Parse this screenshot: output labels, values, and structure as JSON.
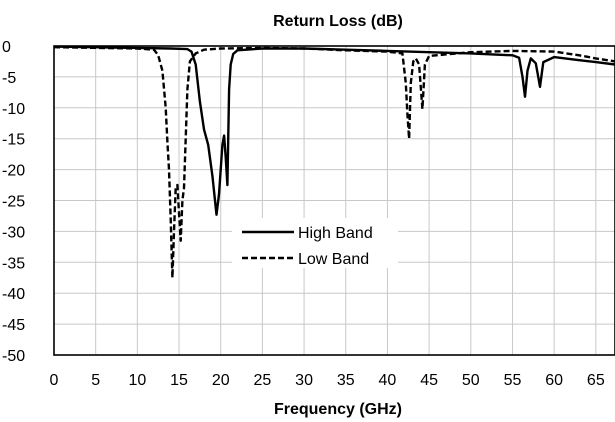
{
  "chart_data": {
    "type": "line",
    "title": "Return Loss (dB)",
    "xlabel": "Frequency (GHz)",
    "ylabel": "",
    "xlim": [
      0,
      67.3
    ],
    "ylim": [
      -50,
      0
    ],
    "xticks": [
      0,
      5,
      10,
      15,
      20,
      25,
      30,
      35,
      40,
      45,
      50,
      55,
      60,
      65
    ],
    "yticks": [
      0,
      -5,
      -10,
      -15,
      -20,
      -25,
      -30,
      -35,
      -40,
      -45,
      -50
    ],
    "grid": true,
    "legend_position": "center",
    "series": [
      {
        "name": "High Band",
        "line_style": "solid",
        "color": "#000000",
        "points": [
          [
            0,
            -0.1
          ],
          [
            10,
            -0.3
          ],
          [
            14,
            -0.4
          ],
          [
            16,
            -0.5
          ],
          [
            16.5,
            -0.9
          ],
          [
            17,
            -3
          ],
          [
            17.5,
            -9
          ],
          [
            18,
            -13.5
          ],
          [
            18.5,
            -16
          ],
          [
            19,
            -21
          ],
          [
            19.5,
            -27.3
          ],
          [
            19.8,
            -24
          ],
          [
            20.2,
            -16
          ],
          [
            20.4,
            -14.5
          ],
          [
            20.6,
            -18
          ],
          [
            20.8,
            -22.5
          ],
          [
            21,
            -7
          ],
          [
            21.2,
            -3
          ],
          [
            21.5,
            -1.3
          ],
          [
            22,
            -0.7
          ],
          [
            25,
            -0.4
          ],
          [
            30,
            -0.4
          ],
          [
            35,
            -0.6
          ],
          [
            40,
            -0.8
          ],
          [
            45,
            -1.0
          ],
          [
            50,
            -1.2
          ],
          [
            55,
            -1.5
          ],
          [
            55.8,
            -1.9
          ],
          [
            56.2,
            -5
          ],
          [
            56.5,
            -8.2
          ],
          [
            56.8,
            -4
          ],
          [
            57.2,
            -2
          ],
          [
            57.8,
            -2.8
          ],
          [
            58.3,
            -6.6
          ],
          [
            58.7,
            -2.6
          ],
          [
            60,
            -1.8
          ],
          [
            63,
            -2.3
          ],
          [
            65,
            -2.6
          ],
          [
            67.3,
            -3.0
          ]
        ]
      },
      {
        "name": "Low Band",
        "line_style": "dashed",
        "color": "#000000",
        "points": [
          [
            0,
            -0.2
          ],
          [
            10,
            -0.4
          ],
          [
            12,
            -0.6
          ],
          [
            12.5,
            -1.5
          ],
          [
            13,
            -4
          ],
          [
            13.4,
            -10
          ],
          [
            13.6,
            -15.5
          ],
          [
            13.8,
            -20
          ],
          [
            14,
            -28
          ],
          [
            14.2,
            -37.5
          ],
          [
            14.4,
            -30
          ],
          [
            14.6,
            -23
          ],
          [
            14.8,
            -22.5
          ],
          [
            15,
            -27
          ],
          [
            15.2,
            -31.5
          ],
          [
            15.4,
            -25
          ],
          [
            15.6,
            -23
          ],
          [
            15.8,
            -15
          ],
          [
            16,
            -7
          ],
          [
            16.3,
            -2.5
          ],
          [
            17,
            -1.2
          ],
          [
            18,
            -0.6
          ],
          [
            20,
            -0.4
          ],
          [
            25,
            -0.3
          ],
          [
            30,
            -0.4
          ],
          [
            35,
            -0.7
          ],
          [
            40,
            -0.9
          ],
          [
            41.8,
            -1.2
          ],
          [
            42.2,
            -6
          ],
          [
            42.4,
            -11
          ],
          [
            42.6,
            -15
          ],
          [
            42.8,
            -6
          ],
          [
            43.1,
            -2.5
          ],
          [
            43.4,
            -2
          ],
          [
            43.8,
            -3
          ],
          [
            44.2,
            -10.2
          ],
          [
            44.5,
            -3
          ],
          [
            45,
            -1.6
          ],
          [
            50,
            -1.0
          ],
          [
            55,
            -0.8
          ],
          [
            60,
            -0.9
          ],
          [
            63,
            -1.5
          ],
          [
            65,
            -2.0
          ],
          [
            67.3,
            -2.5
          ]
        ]
      }
    ]
  }
}
